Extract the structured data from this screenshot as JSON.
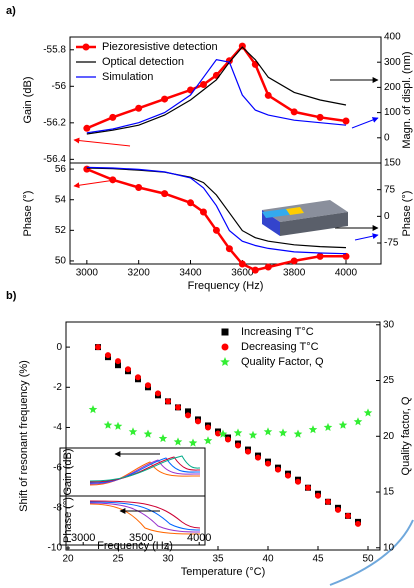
{
  "chart_data": [
    {
      "type": "line",
      "panel_label": "a)",
      "x": [
        3000,
        3100,
        3200,
        3300,
        3400,
        3450,
        3500,
        3550,
        3600,
        3650,
        3700,
        3800,
        3900,
        4000
      ],
      "xlim": [
        2935,
        4135
      ],
      "ylim": [
        -56.42,
        -55.73
      ],
      "yticks": [
        -55.8,
        -56.0,
        -56.2,
        -56.4
      ],
      "ylabel": "Gain (dB)",
      "y2lim": [
        -100,
        400
      ],
      "y2ticks": [
        0,
        100,
        200,
        300,
        400
      ],
      "y2label": "Magn. of displ. (nm)",
      "legend": "upper left",
      "series": [
        {
          "name": "Piezoresistive detection",
          "color": "#ff0000",
          "marker": "circle",
          "axis": "y",
          "values": [
            -56.23,
            -56.17,
            -56.12,
            -56.07,
            -56.02,
            -55.99,
            -55.94,
            -55.86,
            -55.78,
            -55.88,
            -56.05,
            -56.14,
            -56.17,
            -56.19
          ]
        },
        {
          "name": "Optical detection",
          "color": "#000000",
          "axis": "y2",
          "values": [
            15,
            30,
            50,
            90,
            150,
            190,
            230,
            300,
            360,
            310,
            240,
            180,
            150,
            130
          ]
        },
        {
          "name": "Simulation",
          "color": "#0000ff",
          "axis": "y2",
          "values": [
            20,
            35,
            60,
            100,
            170,
            240,
            310,
            300,
            170,
            110,
            90,
            70,
            60,
            50
          ]
        }
      ]
    },
    {
      "type": "line",
      "x": [
        3000,
        3100,
        3200,
        3300,
        3400,
        3450,
        3500,
        3550,
        3600,
        3650,
        3700,
        3800,
        3900,
        4000
      ],
      "xlim": [
        2935,
        4135
      ],
      "xticks": [
        3000,
        3200,
        3400,
        3600,
        3800,
        4000
      ],
      "xlabel": "Frequency (Hz)",
      "ylim": [
        49.8,
        56.4
      ],
      "yticks": [
        56,
        54,
        52,
        50
      ],
      "ylabel": "Phase (°)",
      "y2lim": [
        -134,
        150
      ],
      "y2ticks": [
        150,
        75,
        0,
        -75
      ],
      "y2label": "Phase (°)",
      "series": [
        {
          "color": "#ff0000",
          "marker": "circle",
          "axis": "y",
          "values": [
            56.0,
            55.3,
            54.8,
            54.4,
            53.8,
            53.2,
            52.0,
            50.8,
            49.8,
            49.4,
            49.6,
            50.0,
            50.3,
            50.3
          ]
        },
        {
          "color": "#000000",
          "axis": "y2",
          "values": [
            136,
            134,
            130,
            124,
            110,
            95,
            60,
            10,
            -40,
            -60,
            -70,
            -80,
            -85,
            -88
          ]
        },
        {
          "color": "#0000ff",
          "axis": "y2",
          "values": [
            138,
            136,
            132,
            125,
            108,
            80,
            30,
            -40,
            -70,
            -82,
            -90,
            -100,
            -103,
            -105
          ]
        }
      ]
    },
    {
      "type": "scatter",
      "panel_label": "b)",
      "xlim": [
        19.8,
        51.2
      ],
      "xticks": [
        20,
        25,
        30,
        35,
        40,
        45,
        50
      ],
      "xlabel": "Temperature (°C)",
      "ylim": [
        -10.1,
        1.25
      ],
      "yticks": [
        0,
        -2,
        -4,
        -6,
        -8,
        -10
      ],
      "ylabel": "Shift of resonant frequency (%)",
      "y2lim": [
        9.8,
        30.25
      ],
      "y2ticks": [
        10,
        15,
        20,
        25,
        30
      ],
      "y2label": "Quality factor, Q",
      "legend": "upper right",
      "series": [
        {
          "name": "Increasing T°C",
          "color": "#000000",
          "marker": "square",
          "axis": "y",
          "x": [
            23,
            24,
            25,
            26,
            27,
            28,
            29,
            30,
            31,
            32,
            33,
            34,
            35,
            36,
            37,
            38,
            39,
            40,
            41,
            42,
            43,
            44,
            45,
            46,
            47,
            48,
            49
          ],
          "values": [
            0,
            -0.5,
            -0.9,
            -1.2,
            -1.6,
            -2.0,
            -2.4,
            -2.7,
            -3.0,
            -3.2,
            -3.6,
            -3.9,
            -4.2,
            -4.5,
            -4.8,
            -5.1,
            -5.4,
            -5.7,
            -6.0,
            -6.3,
            -6.6,
            -7.0,
            -7.3,
            -7.7,
            -8.0,
            -8.4,
            -8.7
          ]
        },
        {
          "name": "Decreasing T°C",
          "color": "#ff0000",
          "marker": "circle",
          "axis": "y",
          "x": [
            23,
            24,
            25,
            26,
            27,
            28,
            29,
            30,
            31,
            32,
            33,
            34,
            35,
            36,
            37,
            38,
            39,
            40,
            41,
            42,
            43,
            44,
            45,
            46,
            47,
            48,
            49
          ],
          "values": [
            0,
            -0.4,
            -0.7,
            -1.1,
            -1.5,
            -1.9,
            -2.3,
            -2.7,
            -3.0,
            -3.4,
            -3.7,
            -4.0,
            -4.3,
            -4.6,
            -4.9,
            -5.2,
            -5.5,
            -5.8,
            -6.1,
            -6.4,
            -6.7,
            -7.0,
            -7.4,
            -7.7,
            -8.1,
            -8.4,
            -8.8
          ]
        },
        {
          "name": "Quality Factor, Q",
          "color": "#33ee33",
          "marker": "star",
          "axis": "y2",
          "x": [
            22.5,
            24,
            25,
            26.5,
            28,
            29.5,
            31,
            32.5,
            34,
            35.5,
            37,
            38.5,
            40,
            41.5,
            43,
            44.5,
            46,
            47.5,
            49,
            50
          ],
          "values": [
            22.4,
            21.0,
            20.9,
            20.4,
            20.2,
            19.8,
            19.5,
            19.4,
            19.6,
            20.2,
            20.3,
            20.1,
            20.4,
            20.3,
            20.2,
            20.6,
            20.8,
            21.0,
            21.3,
            22.1
          ]
        }
      ],
      "inset": {
        "ylabels": [
          "Gain (dB)",
          "Phase (°)"
        ],
        "xticks": [
          3000,
          3500,
          4000
        ],
        "xlim": [
          2800,
          4050
        ],
        "xlabel": "Frequency (Hz)"
      }
    }
  ]
}
